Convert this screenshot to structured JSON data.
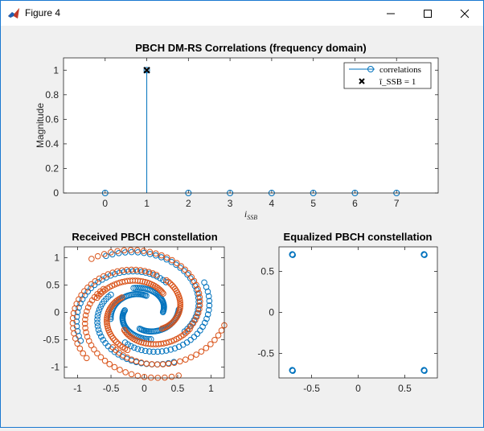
{
  "window": {
    "title": "Figure 4",
    "minimize_label": "Minimize",
    "maximize_label": "Maximize",
    "close_label": "Close"
  },
  "colors": {
    "blue": "#0072bd",
    "orange": "#d95319",
    "axis": "#262626",
    "background": "#f0f0f0",
    "plot_bg": "#ffffff"
  },
  "chart_data": [
    {
      "type": "stem",
      "title": "PBCH DM-RS Correlations (frequency domain)",
      "xlabel": "ī_SSB",
      "ylabel": "Magnitude",
      "xlim": [
        -1,
        8
      ],
      "ylim": [
        0,
        1.1
      ],
      "xticks": [
        "0",
        "1",
        "2",
        "3",
        "4",
        "5",
        "6",
        "7"
      ],
      "yticks": [
        "0",
        "0.2",
        "0.4",
        "0.6",
        "0.8",
        "1"
      ],
      "x": [
        0,
        1,
        2,
        3,
        4,
        5,
        6,
        7
      ],
      "values": [
        0,
        1,
        0,
        0,
        0,
        0,
        0,
        0
      ],
      "detected": {
        "x": 1,
        "y": 1
      },
      "legend": {
        "position": "top-right",
        "entries": [
          {
            "label": "correlations",
            "marker": "circle",
            "color": "#0072bd"
          },
          {
            "label": "ī_SSB = 1",
            "marker": "x",
            "color": "#000000"
          }
        ]
      }
    },
    {
      "type": "scatter",
      "title": "Received PBCH constellation",
      "xlim": [
        -1.2,
        1.2
      ],
      "ylim": [
        -1.2,
        1.2
      ],
      "xticks": [
        "-1",
        "-0.5",
        "0",
        "0.5",
        "1"
      ],
      "yticks": [
        "-1",
        "-0.5",
        "0",
        "0.5",
        "1"
      ],
      "series": [
        {
          "color": "#0072bd",
          "clusters": [
            [
              0.69,
              0.68
            ],
            [
              -0.62,
              0.64
            ],
            [
              -0.62,
              -0.55
            ],
            [
              0.63,
              -0.59
            ],
            [
              0.22,
              0.32
            ],
            [
              -0.32,
              0.28
            ],
            [
              -0.28,
              -0.3
            ],
            [
              0.28,
              -0.32
            ]
          ]
        },
        {
          "color": "#d95319",
          "clusters": [
            [
              0.6,
              0.84
            ],
            [
              -0.85,
              0.5
            ],
            [
              -0.8,
              -0.66
            ],
            [
              0.68,
              -0.87
            ],
            [
              -0.16,
              0.6
            ],
            [
              -0.58,
              -0.16
            ],
            [
              0.12,
              -0.6
            ],
            [
              0.55,
              0.06
            ]
          ]
        }
      ]
    },
    {
      "type": "scatter",
      "title": "Equalized PBCH constellation",
      "xlim": [
        -0.85,
        0.85
      ],
      "ylim": [
        -0.8,
        0.8
      ],
      "xticks": [
        "-0.5",
        "0",
        "0.5"
      ],
      "yticks": [
        "-0.5",
        "0",
        "0.5"
      ],
      "series": [
        {
          "color": "#0072bd",
          "points": [
            [
              -0.707,
              0.707
            ],
            [
              0.707,
              0.707
            ],
            [
              -0.707,
              -0.707
            ],
            [
              0.707,
              -0.707
            ]
          ]
        }
      ]
    }
  ]
}
